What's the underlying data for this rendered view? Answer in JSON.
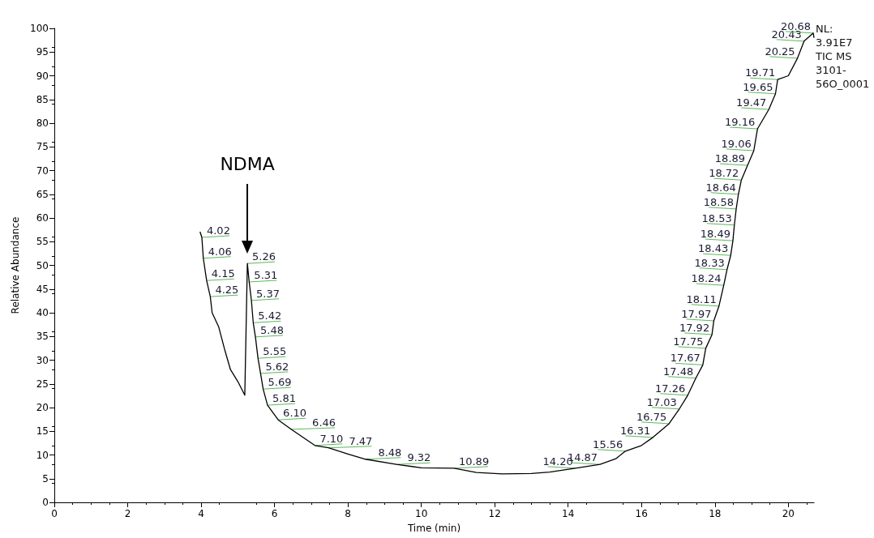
{
  "chart_data": {
    "type": "line",
    "xlabel": "Time (min)",
    "ylabel": "Relative Abundance",
    "xlim": [
      0,
      20.7
    ],
    "xticks": [
      0,
      2,
      4,
      6,
      8,
      10,
      12,
      14,
      16,
      18,
      20
    ],
    "ylim": [
      0,
      100
    ],
    "yticks": [
      0,
      5,
      10,
      15,
      20,
      25,
      30,
      35,
      40,
      45,
      50,
      55,
      60,
      65,
      70,
      75,
      80,
      85,
      90,
      95,
      100
    ],
    "grid": false,
    "series": [
      {
        "color": "#000000",
        "x": [
          3.97,
          4.02,
          4.06,
          4.15,
          4.25,
          4.3,
          4.48,
          4.65,
          4.8,
          5.0,
          5.19,
          5.26,
          5.31,
          5.37,
          5.42,
          5.48,
          5.55,
          5.62,
          5.69,
          5.81,
          6.1,
          6.46,
          7.1,
          7.47,
          8.0,
          8.48,
          9.32,
          10.0,
          10.89,
          11.5,
          12.2,
          13.0,
          13.5,
          14.2,
          14.87,
          15.3,
          15.56,
          16.0,
          16.31,
          16.75,
          17.03,
          17.26,
          17.48,
          17.67,
          17.75,
          17.92,
          17.97,
          18.11,
          18.24,
          18.33,
          18.43,
          18.49,
          18.53,
          18.58,
          18.64,
          18.72,
          18.89,
          19.06,
          19.16,
          19.47,
          19.65,
          19.71,
          20.0,
          20.25,
          20.43,
          20.68,
          20.7
        ],
        "values": [
          57.1,
          55.9,
          51.5,
          46.8,
          43.4,
          40,
          37,
          32,
          28,
          25.5,
          22.6,
          50.4,
          46.5,
          42.6,
          37.9,
          34.9,
          30.4,
          27.2,
          23.9,
          20.5,
          17.4,
          15.4,
          12,
          11.5,
          10.2,
          9.1,
          8,
          7.3,
          7.2,
          6.3,
          6,
          6.1,
          6.4,
          7.2,
          8,
          9.2,
          10.8,
          12,
          13.7,
          16.6,
          19.7,
          22.6,
          26.2,
          29,
          32.5,
          35.4,
          38.3,
          41.4,
          45.8,
          49.1,
          52.1,
          55.2,
          58.5,
          61.9,
          65,
          68,
          71.1,
          74.2,
          78.8,
          82.9,
          86.2,
          89.2,
          90,
          93.7,
          97.3,
          99,
          98
        ]
      }
    ],
    "annotations": [
      "NDMA",
      "NL:\n3.91E7\nTIC MS\n3101-\n56O_0001",
      {
        "text": "4.02",
        "x": 4.02,
        "y": 55.9
      },
      {
        "text": "4.06",
        "x": 4.06,
        "y": 51.5
      },
      {
        "text": "4.15",
        "x": 4.15,
        "y": 46.8
      },
      {
        "text": "4.25",
        "x": 4.25,
        "y": 43.4
      },
      {
        "text": "5.26",
        "x": 5.26,
        "y": 50.4
      },
      {
        "text": "5.31",
        "x": 5.31,
        "y": 46.5
      },
      {
        "text": "5.37",
        "x": 5.37,
        "y": 42.6
      },
      {
        "text": "5.42",
        "x": 5.42,
        "y": 37.9
      },
      {
        "text": "5.48",
        "x": 5.48,
        "y": 34.9
      },
      {
        "text": "5.55",
        "x": 5.55,
        "y": 30.4
      },
      {
        "text": "5.62",
        "x": 5.62,
        "y": 27.2
      },
      {
        "text": "5.69",
        "x": 5.69,
        "y": 23.9
      },
      {
        "text": "5.81",
        "x": 5.81,
        "y": 20.5
      },
      {
        "text": "6.10",
        "x": 6.1,
        "y": 17.4
      },
      {
        "text": "6.46",
        "x": 6.46,
        "y": 15.4
      },
      {
        "text": "7.10",
        "x": 7.1,
        "y": 12
      },
      {
        "text": "7.47",
        "x": 7.47,
        "y": 11.5
      },
      {
        "text": "8.48",
        "x": 8.48,
        "y": 9.1
      },
      {
        "text": "9.32",
        "x": 9.32,
        "y": 8
      },
      {
        "text": "10.89",
        "x": 10.89,
        "y": 7.2
      },
      {
        "text": "14.20",
        "x": 14.2,
        "y": 7.2
      },
      {
        "text": "14.87",
        "x": 14.87,
        "y": 8
      },
      {
        "text": "15.56",
        "x": 15.56,
        "y": 10.8
      },
      {
        "text": "16.31",
        "x": 16.31,
        "y": 13.7
      },
      {
        "text": "16.75",
        "x": 16.75,
        "y": 16.6
      },
      {
        "text": "17.03",
        "x": 17.03,
        "y": 19.7
      },
      {
        "text": "17.26",
        "x": 17.26,
        "y": 22.6
      },
      {
        "text": "17.48",
        "x": 17.48,
        "y": 26.2
      },
      {
        "text": "17.67",
        "x": 17.67,
        "y": 29
      },
      {
        "text": "17.75",
        "x": 17.75,
        "y": 32.5
      },
      {
        "text": "17.92",
        "x": 17.92,
        "y": 35.4
      },
      {
        "text": "17.97",
        "x": 17.97,
        "y": 38.3
      },
      {
        "text": "18.11",
        "x": 18.11,
        "y": 41.4
      },
      {
        "text": "18.24",
        "x": 18.24,
        "y": 45.8
      },
      {
        "text": "18.33",
        "x": 18.33,
        "y": 49.1
      },
      {
        "text": "18.43",
        "x": 18.43,
        "y": 52.1
      },
      {
        "text": "18.49",
        "x": 18.49,
        "y": 55.2
      },
      {
        "text": "18.53",
        "x": 18.53,
        "y": 58.5
      },
      {
        "text": "18.58",
        "x": 18.58,
        "y": 61.9
      },
      {
        "text": "18.64",
        "x": 18.64,
        "y": 65
      },
      {
        "text": "18.72",
        "x": 18.72,
        "y": 68
      },
      {
        "text": "18.89",
        "x": 18.89,
        "y": 71.1
      },
      {
        "text": "19.06",
        "x": 19.06,
        "y": 74.2
      },
      {
        "text": "19.16",
        "x": 19.16,
        "y": 78.8
      },
      {
        "text": "19.47",
        "x": 19.47,
        "y": 82.9
      },
      {
        "text": "19.65",
        "x": 19.65,
        "y": 86.2
      },
      {
        "text": "19.71",
        "x": 19.71,
        "y": 89.2
      },
      {
        "text": "20.25",
        "x": 20.25,
        "y": 93.7
      },
      {
        "text": "20.43",
        "x": 20.43,
        "y": 97.3
      },
      {
        "text": "20.68",
        "x": 20.68,
        "y": 99
      }
    ]
  }
}
